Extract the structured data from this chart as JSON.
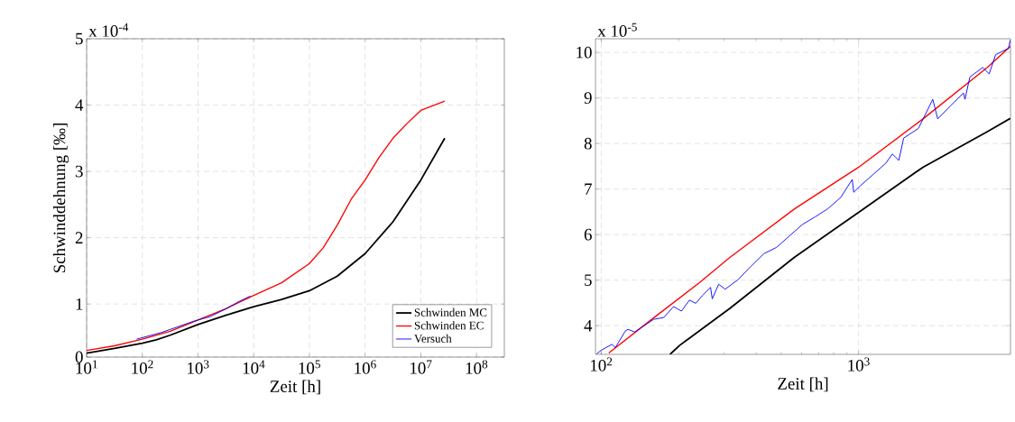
{
  "chart_data": [
    {
      "type": "line",
      "xlabel": "Zeit [h]",
      "ylabel": "Schwinddehnung [‰]",
      "annotations": [
        "x 10$^{-4}$"
      ],
      "log": "x",
      "grid": true,
      "legend": "bottom right",
      "line_style": "solid",
      "marker": "none",
      "xlim": [
        10,
        316000000
      ],
      "ylim": [
        0.2,
        5
      ],
      "xticks": [
        {
          "value": 10,
          "label": "10$^{1}$"
        },
        {
          "value": 100,
          "label": "10$^{2}$"
        },
        {
          "value": 1000,
          "label": "10$^{3}$"
        },
        {
          "value": 10000,
          "label": "10$^{4}$"
        },
        {
          "value": 100000,
          "label": "10$^{5}$"
        },
        {
          "value": 1000000,
          "label": "10$^{6}$"
        },
        {
          "value": 10000000,
          "label": "10$^{7}$"
        },
        {
          "value": 100000000,
          "label": "10$^{8}$"
        }
      ],
      "yticks": [
        {
          "value": 0.2,
          "label": "0"
        },
        1,
        2,
        3,
        4,
        5
      ],
      "series": [
        {
          "name": "Schwinden MC",
          "color": "#000000",
          "x": [
            10,
            31.6,
            100,
            178,
            316,
            1000,
            3162,
            10000,
            31623,
            100000,
            316228,
            1000000,
            3162278,
            10000000,
            26900000
          ],
          "values": [
            0.26,
            0.33,
            0.41,
            0.46,
            0.53,
            0.69,
            0.83,
            0.96,
            1.07,
            1.2,
            1.42,
            1.76,
            2.24,
            2.87,
            3.5
          ]
        },
        {
          "name": "Schwinden EC",
          "color": "#ff0000",
          "x": [
            10,
            31.6,
            100,
            316,
            1000,
            3162,
            10000,
            31623,
            100000,
            177828,
            316228,
            562341,
            1000000,
            1778279,
            3162278,
            5623413,
            10000000,
            26900000
          ],
          "values": [
            0.3,
            0.37,
            0.47,
            0.59,
            0.76,
            0.93,
            1.13,
            1.32,
            1.61,
            1.85,
            2.19,
            2.58,
            2.87,
            3.21,
            3.5,
            3.72,
            3.92,
            4.06
          ]
        },
        {
          "name": "Versuch",
          "color": "#0000ff",
          "x": [
            79,
            219,
            832,
            1650,
            3236,
            5495,
            8710
          ],
          "values": [
            0.47,
            0.57,
            0.74,
            0.81,
            0.93,
            1.04,
            1.12
          ]
        }
      ]
    },
    {
      "type": "line",
      "xlabel": "Zeit [h]",
      "annotations": [
        "x 10$^{-5}$"
      ],
      "log": "x",
      "grid": true,
      "line_style": "solid",
      "marker": "none",
      "xlim": [
        95,
        3890
      ],
      "ylim": [
        3.37,
        10.3
      ],
      "xticks": [
        {
          "value": 100,
          "label": "10$^{2}$"
        },
        {
          "value": 1000,
          "label": "10$^{3}$"
        }
      ],
      "yticks": [
        4,
        5,
        6,
        7,
        8,
        9,
        10
      ],
      "series": [
        {
          "color": "#000000",
          "x": [
            185,
            202,
            316,
            562,
            1000,
            1778,
            3162,
            3882
          ],
          "values": [
            3.37,
            3.57,
            4.38,
            5.5,
            6.49,
            7.48,
            8.26,
            8.55
          ]
        },
        {
          "color": "#ff0000",
          "x": [
            107,
            158,
            240,
            316,
            562,
            1000,
            1778,
            3162,
            3882
          ],
          "values": [
            3.4,
            4.15,
            4.94,
            5.5,
            6.56,
            7.48,
            8.54,
            9.67,
            10.13
          ]
        },
        {
          "color": "#0000ff",
          "x": [
            96,
            100,
            110,
            113.5,
            124,
            127,
            135,
            143,
            160,
            175,
            191,
            205,
            220,
            233,
            247,
            266,
            270,
            286,
            303,
            340,
            381,
            428,
            480,
            538,
            604,
            678,
            760,
            853,
            944,
            957,
            1014,
            1138,
            1276,
            1352,
            1432,
            1496,
            1706,
            1941,
            2028,
            2275,
            2553,
            2588,
            2704,
            3034,
            3214,
            3404,
            3606,
            3819,
            3882
          ],
          "values": [
            3.38,
            3.46,
            3.59,
            3.52,
            3.88,
            3.92,
            3.86,
            3.96,
            4.14,
            4.18,
            4.42,
            4.32,
            4.56,
            4.49,
            4.66,
            4.84,
            4.59,
            4.91,
            4.8,
            5.01,
            5.3,
            5.58,
            5.72,
            5.97,
            6.22,
            6.39,
            6.57,
            6.82,
            7.21,
            6.93,
            7.07,
            7.32,
            7.57,
            7.77,
            7.63,
            8.12,
            8.33,
            8.97,
            8.54,
            8.83,
            9.11,
            8.97,
            9.46,
            9.67,
            9.53,
            9.95,
            10.02,
            10.09,
            10.27
          ]
        }
      ]
    }
  ]
}
